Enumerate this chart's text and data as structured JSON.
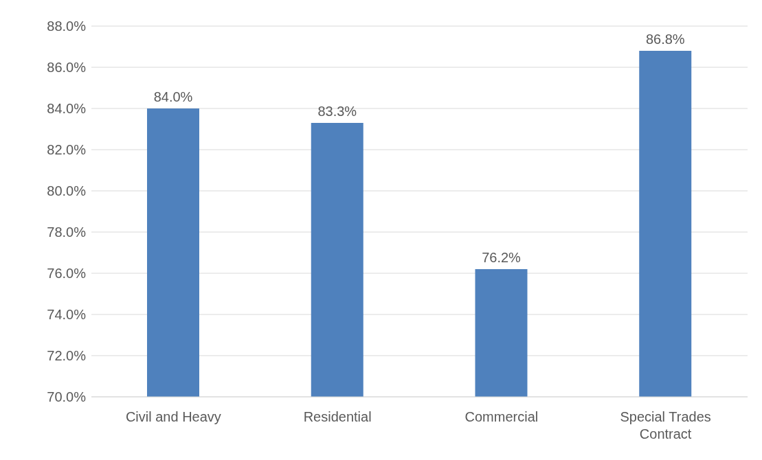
{
  "chart_data": {
    "type": "bar",
    "categories": [
      "Civil and Heavy",
      "Residential",
      "Commercial",
      "Special Trades Contract"
    ],
    "values": [
      84.0,
      83.3,
      76.2,
      86.8
    ],
    "color": "#4f81bd",
    "value_labels": [
      "84.0%",
      "83.3%",
      "76.2%",
      "86.8%"
    ],
    "ylim": [
      70,
      88
    ],
    "yticks": [
      {
        "value": 70,
        "label": "70.0%"
      },
      {
        "value": 72,
        "label": "72.0%"
      },
      {
        "value": 74,
        "label": "74.0%"
      },
      {
        "value": 76,
        "label": "76.0%"
      },
      {
        "value": 78,
        "label": "78.0%"
      },
      {
        "value": 80,
        "label": "80.0%"
      },
      {
        "value": 82,
        "label": "82.0%"
      },
      {
        "value": 84,
        "label": "84.0%"
      },
      {
        "value": 86,
        "label": "86.0%"
      },
      {
        "value": 88,
        "label": "88.0%"
      }
    ],
    "grid": "y",
    "legend": false
  }
}
